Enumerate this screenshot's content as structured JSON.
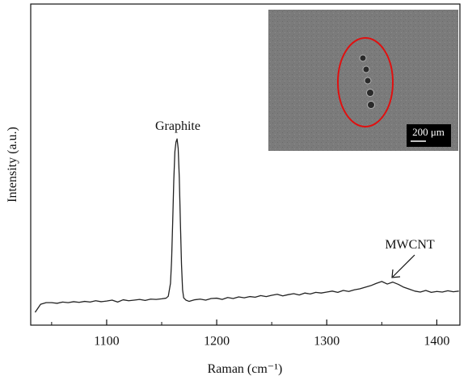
{
  "chart_data": {
    "type": "line",
    "x_label": "Raman (cm⁻¹)",
    "y_label": "Intensity (a.u.)",
    "annotations": [
      "Graphite",
      "MWCNT"
    ],
    "inset_scale_label": "200 μm",
    "color": "#222222",
    "xlim": [
      1031,
      1421
    ],
    "ylim": [
      0,
      100
    ],
    "xticks": [
      1100,
      1200,
      1300,
      1400
    ],
    "xticks_minor": [
      1050,
      1150,
      1250,
      1350
    ],
    "x": [
      1035,
      1040,
      1045,
      1050,
      1055,
      1060,
      1065,
      1070,
      1075,
      1080,
      1085,
      1090,
      1095,
      1100,
      1105,
      1110,
      1115,
      1120,
      1125,
      1130,
      1135,
      1140,
      1145,
      1150,
      1154,
      1156,
      1158,
      1159,
      1160,
      1161,
      1162,
      1163,
      1164,
      1165,
      1166,
      1167,
      1168,
      1169,
      1170,
      1172,
      1175,
      1180,
      1185,
      1190,
      1195,
      1200,
      1205,
      1210,
      1215,
      1220,
      1225,
      1230,
      1235,
      1240,
      1245,
      1250,
      1255,
      1260,
      1265,
      1270,
      1275,
      1280,
      1285,
      1290,
      1295,
      1300,
      1305,
      1310,
      1315,
      1320,
      1325,
      1330,
      1335,
      1340,
      1345,
      1350,
      1355,
      1360,
      1365,
      1370,
      1375,
      1380,
      1385,
      1390,
      1395,
      1400,
      1405,
      1410,
      1415,
      1420
    ],
    "values": [
      4,
      6.5,
      7,
      7,
      6.8,
      7.2,
      7,
      7.3,
      7.1,
      7.4,
      7.2,
      7.6,
      7.3,
      7.5,
      7.8,
      7.2,
      7.9,
      7.6,
      7.8,
      8,
      7.7,
      8.1,
      8,
      8.2,
      8.4,
      9,
      13,
      20,
      32,
      45,
      54,
      57,
      58,
      55,
      46,
      32,
      19,
      11,
      8.5,
      7.8,
      7.4,
      7.9,
      8.1,
      7.8,
      8.3,
      8.4,
      8,
      8.6,
      8.3,
      8.8,
      8.5,
      8.9,
      8.7,
      9.2,
      8.9,
      9.3,
      9.6,
      9.1,
      9.5,
      9.8,
      9.4,
      10,
      9.7,
      10.2,
      10,
      10.3,
      10.6,
      10.2,
      10.8,
      10.5,
      11,
      11.3,
      11.8,
      12.3,
      13,
      13.6,
      12.8,
      13.4,
      12.7,
      11.8,
      11.2,
      10.6,
      10.3,
      10.8,
      10.2,
      10.5,
      10.3,
      10.7,
      10.4,
      10.6
    ]
  }
}
